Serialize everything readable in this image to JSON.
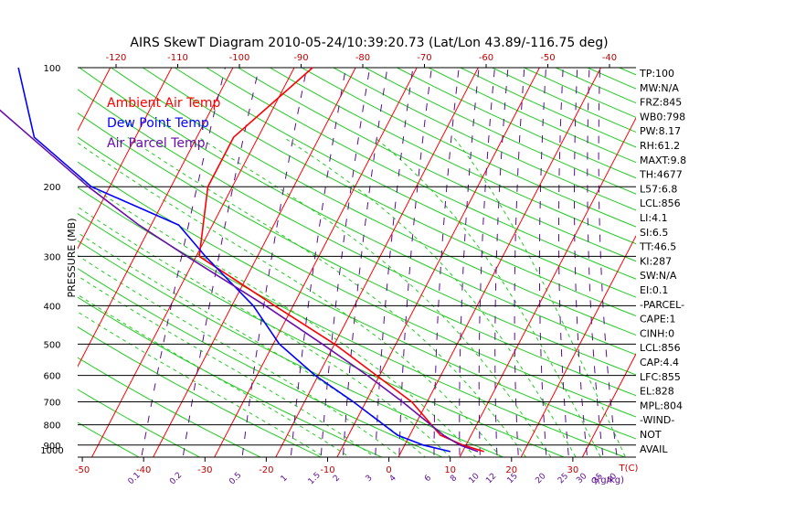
{
  "chart_data": {
    "type": "line",
    "title": "AIRS SkewT Diagram 2010-05-24/10:39:20.73 (Lat/Lon 43.89/-116.75 deg)",
    "ylabel": "PRESSURE (MB)",
    "xlabel": "T(C)",
    "mixing_ratio_unit": "q(g/kg)",
    "y_scale": "log",
    "ylim": [
      1000,
      100
    ],
    "bottom_ticks": [
      -50,
      -40,
      -30,
      -20,
      -10,
      0,
      10,
      20,
      30
    ],
    "top_ticks": [
      -120,
      -110,
      -100,
      -90,
      -80,
      -70,
      -60,
      -50,
      -40
    ],
    "pressure_ticks": [
      100,
      200,
      300,
      400,
      500,
      600,
      700,
      800,
      900,
      1000
    ],
    "mixing_ratio_labels": [
      "0.1",
      "0.2",
      "0.5",
      "1",
      "1.5",
      "2",
      "3",
      "4",
      "6",
      "8",
      "10",
      "12",
      "15",
      "20",
      "25",
      "30",
      "35",
      "40"
    ],
    "legend": [
      {
        "name": "Ambient Air Temp",
        "color": "#ff0000"
      },
      {
        "name": "Dew Point Temp",
        "color": "#0000ff"
      },
      {
        "name": "Air Parcel Temp",
        "color": "#6a0dad"
      }
    ],
    "legend_position": "top-left",
    "series": [
      {
        "name": "Ambient Air Temp",
        "color": "#ff0000",
        "points": [
          {
            "p": 100,
            "t": -47.0
          },
          {
            "p": 150,
            "t": -54.0
          },
          {
            "p": 200,
            "t": -54.0
          },
          {
            "p": 300,
            "t": -49.5
          },
          {
            "p": 400,
            "t": -33.0
          },
          {
            "p": 500,
            "t": -20.0
          },
          {
            "p": 600,
            "t": -10.5
          },
          {
            "p": 700,
            "t": -2.5
          },
          {
            "p": 850,
            "t": 5.0
          },
          {
            "p": 900,
            "t": 9.5
          },
          {
            "p": 935,
            "t": 13.5
          }
        ]
      },
      {
        "name": "Dew Point Temp",
        "color": "#0000ff",
        "points": [
          {
            "p": 100,
            "t": -95.0
          },
          {
            "p": 150,
            "t": -86.5
          },
          {
            "p": 200,
            "t": -73.0
          },
          {
            "p": 250,
            "t": -55.5
          },
          {
            "p": 300,
            "t": -48.5
          },
          {
            "p": 400,
            "t": -36.5
          },
          {
            "p": 500,
            "t": -29.0
          },
          {
            "p": 600,
            "t": -20.5
          },
          {
            "p": 700,
            "t": -12.0
          },
          {
            "p": 850,
            "t": -2.0
          },
          {
            "p": 900,
            "t": 3.0
          },
          {
            "p": 935,
            "t": 8.0
          }
        ]
      },
      {
        "name": "Air Parcel Temp",
        "color": "#6a0dad",
        "points": [
          {
            "p": 100,
            "t": -106.0
          },
          {
            "p": 150,
            "t": -87.0
          },
          {
            "p": 200,
            "t": -73.5
          },
          {
            "p": 250,
            "t": -62.0
          },
          {
            "p": 300,
            "t": -51.5
          },
          {
            "p": 400,
            "t": -34.5
          },
          {
            "p": 500,
            "t": -22.0
          },
          {
            "p": 600,
            "t": -12.0
          },
          {
            "p": 700,
            "t": -4.0
          },
          {
            "p": 850,
            "t": 5.5
          },
          {
            "p": 900,
            "t": 9.0
          },
          {
            "p": 935,
            "t": 12.5
          }
        ]
      }
    ],
    "indices": [
      "TP:100",
      "MW:N/A",
      "FRZ:845",
      "WB0:798",
      "PW:8.17",
      "RH:61.2",
      "MAXT:9.8",
      "TH:4677",
      "L57:6.8",
      "LCL:856",
      "LI:4.1",
      "SI:6.5",
      "TT:46.5",
      "KI:287",
      "SW:N/A",
      "EI:0.1",
      "-PARCEL-",
      "CAPE:1",
      "CINH:0",
      "LCL:856",
      "CAP:4.4",
      "LFC:855",
      "EL:828",
      "MPL:804",
      "-WIND-",
      "NOT",
      "AVAIL"
    ]
  }
}
